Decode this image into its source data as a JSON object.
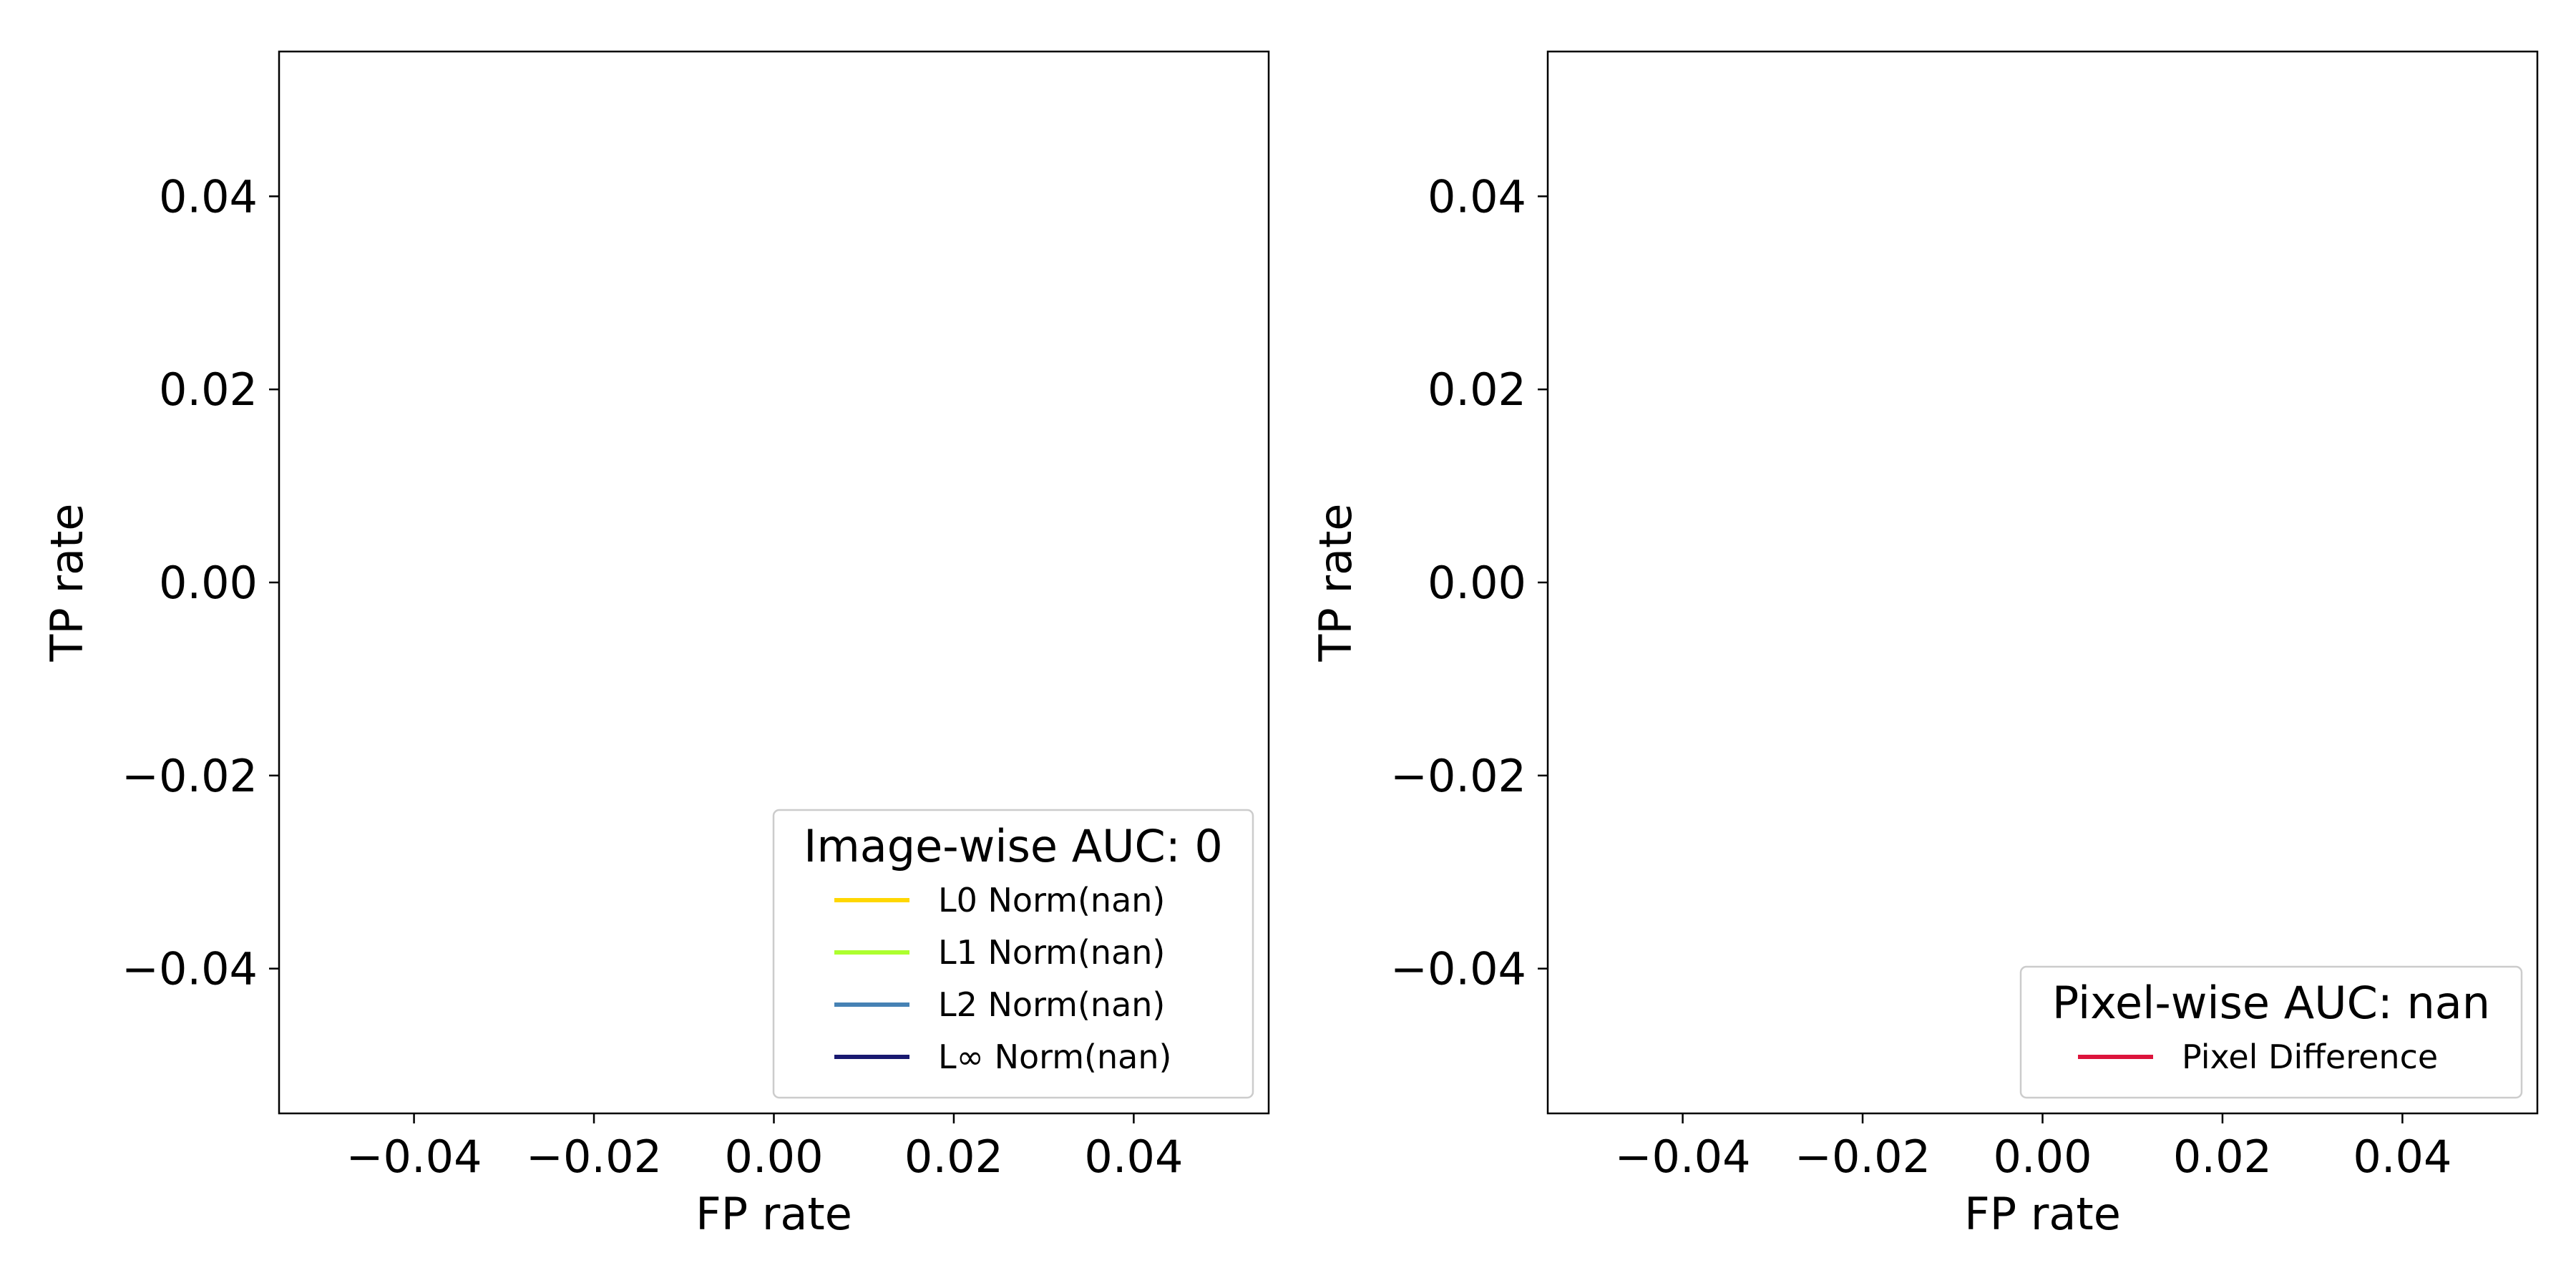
{
  "chart_data": [
    {
      "type": "line",
      "xlabel": "FP rate",
      "ylabel": "TP rate",
      "xlim": [
        -0.055,
        0.055
      ],
      "ylim": [
        -0.055,
        0.055
      ],
      "xticks": [
        "−0.04",
        "−0.02",
        "0.00",
        "0.02",
        "0.04"
      ],
      "xtick_values": [
        -0.04,
        -0.02,
        0.0,
        0.02,
        0.04
      ],
      "yticks": [
        "−0.04",
        "−0.02",
        "0.00",
        "0.02",
        "0.04"
      ],
      "ytick_values": [
        -0.04,
        -0.02,
        0.0,
        0.02,
        0.04
      ],
      "grid": false,
      "legend": {
        "title": "Image-wise AUC: 0",
        "placement": "lower-right",
        "entries": [
          {
            "label": "L0 Norm(nan)",
            "color": "#ffd700"
          },
          {
            "label": "L1 Norm(nan)",
            "color": "#adff2f"
          },
          {
            "label": "L2 Norm(nan)",
            "color": "#4682b4"
          },
          {
            "label": "L∞ Norm(nan)",
            "color": "#191970"
          }
        ]
      },
      "series": [
        {
          "name": "L0 Norm(nan)",
          "color": "#ffd700",
          "x": [],
          "y": []
        },
        {
          "name": "L1 Norm(nan)",
          "color": "#adff2f",
          "x": [],
          "y": []
        },
        {
          "name": "L2 Norm(nan)",
          "color": "#4682b4",
          "x": [],
          "y": []
        },
        {
          "name": "L∞ Norm(nan)",
          "color": "#191970",
          "x": [],
          "y": []
        }
      ]
    },
    {
      "type": "line",
      "xlabel": "FP rate",
      "ylabel": "TP rate",
      "xlim": [
        -0.055,
        0.055
      ],
      "ylim": [
        -0.055,
        0.055
      ],
      "xticks": [
        "−0.04",
        "−0.02",
        "0.00",
        "0.02",
        "0.04"
      ],
      "xtick_values": [
        -0.04,
        -0.02,
        0.0,
        0.02,
        0.04
      ],
      "yticks": [
        "−0.04",
        "−0.02",
        "0.00",
        "0.02",
        "0.04"
      ],
      "ytick_values": [
        -0.04,
        -0.02,
        0.0,
        0.02,
        0.04
      ],
      "grid": false,
      "legend": {
        "title": "Pixel-wise AUC: nan",
        "placement": "lower-right",
        "entries": [
          {
            "label": "Pixel Difference",
            "color": "#dc143c"
          }
        ]
      },
      "series": [
        {
          "name": "Pixel Difference",
          "color": "#dc143c",
          "x": [],
          "y": []
        }
      ]
    }
  ]
}
